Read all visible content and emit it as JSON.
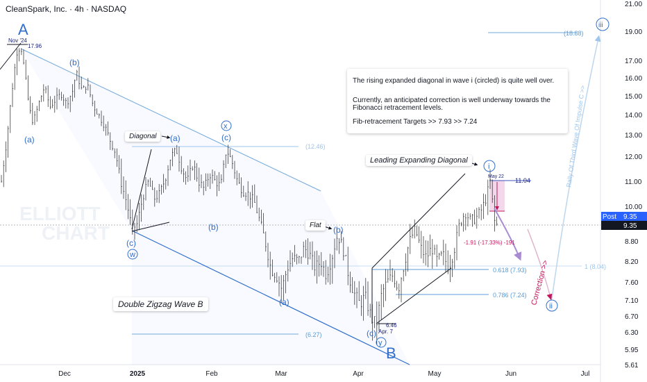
{
  "header": {
    "title": "CleanSpark, Inc. · 4h · NASDAQ"
  },
  "chart_data": {
    "type": "candlestick",
    "y_ticks": [
      "21.00",
      "19.00",
      "17.00",
      "16.00",
      "15.00",
      "14.00",
      "13.00",
      "12.00",
      "11.00",
      "10.00",
      "9.35",
      "8.80",
      "8.20",
      "7.60",
      "7.10",
      "6.70",
      "6.30",
      "5.95",
      "5.61"
    ],
    "y_tick_values": [
      21.0,
      19.0,
      17.0,
      16.0,
      15.0,
      14.0,
      13.0,
      12.0,
      11.0,
      10.0,
      9.35,
      8.8,
      8.2,
      7.6,
      7.1,
      6.7,
      6.3,
      5.95,
      5.61
    ],
    "x_ticks": [
      "Dec",
      "2025",
      "Feb",
      "Mar",
      "Apr",
      "May",
      "Jun",
      "Jul"
    ],
    "current_price": {
      "label": "Post",
      "value": "9.35"
    },
    "price_labels": {
      "high": "17.96",
      "high_date": "Nov '24",
      "low": "6.46",
      "low_date": "Apr. 7",
      "may_high": "11.04",
      "may_date": "May 22",
      "drop": "-1.91 (-17.33%) -191"
    },
    "levels": [
      {
        "label": "(18.88)",
        "value": 18.88
      },
      {
        "label": "(12.46)",
        "value": 12.46
      },
      {
        "label": "(6.27)",
        "value": 6.27
      },
      {
        "label": "1 (8.04)",
        "value": 8.04
      },
      {
        "label": "0.618 (7.93)",
        "value": 7.93
      },
      {
        "label": "0.786 (7.24)",
        "value": 7.24
      }
    ],
    "wave_labels": [
      "A",
      "(b)",
      "(a)",
      "(a)",
      "(c)",
      "w",
      "x",
      "(c)",
      "(b)",
      "(a)",
      "(b)",
      "(c)",
      "y",
      "B",
      "i",
      "ii",
      "iii"
    ],
    "annotations": {
      "diagonal": "Diagonal",
      "flat": "Flat",
      "leading": "Leading Expanding Diagonal",
      "double_zigzag": "Double Zigzag Wave B",
      "correction": "Correction >>",
      "rally": "Rally Of Third Wave Of Impulse C >>"
    },
    "info": {
      "line1": "The rising expanded diagonal in wave i (circled) is quite well over.",
      "line2": "Currently, an anticipated correction is well underway towards the",
      "line3": "Fibonacci retracement levels.",
      "line4": "Fib-retracement Targets >> 7.93   >>  7.24"
    },
    "watermark": [
      "ELLIOTT",
      "CHART"
    ],
    "candle_path": [
      [
        -6,
        12.0
      ],
      [
        2,
        11.0
      ],
      [
        10,
        12.8
      ],
      [
        18,
        15.5
      ],
      [
        24,
        17.5
      ],
      [
        30,
        17.96
      ],
      [
        36,
        16.2
      ],
      [
        42,
        14.3
      ],
      [
        48,
        13.6
      ],
      [
        56,
        14.6
      ],
      [
        64,
        15.5
      ],
      [
        72,
        14.4
      ],
      [
        80,
        14.8
      ],
      [
        88,
        15.1
      ],
      [
        96,
        14.6
      ],
      [
        104,
        15.2
      ],
      [
        110,
        16.3
      ],
      [
        118,
        15.3
      ],
      [
        126,
        15.6
      ],
      [
        134,
        14.5
      ],
      [
        142,
        14.0
      ],
      [
        150,
        13.5
      ],
      [
        158,
        12.8
      ],
      [
        166,
        12.2
      ],
      [
        174,
        11.0
      ],
      [
        182,
        10.2
      ],
      [
        190,
        9.2
      ],
      [
        198,
        9.4
      ],
      [
        206,
        10.4
      ],
      [
        214,
        11.0
      ],
      [
        222,
        10.3
      ],
      [
        230,
        10.5
      ],
      [
        238,
        11.1
      ],
      [
        246,
        12.0
      ],
      [
        254,
        12.3
      ],
      [
        262,
        11.5
      ],
      [
        270,
        11.0
      ],
      [
        278,
        11.7
      ],
      [
        286,
        11.0
      ],
      [
        294,
        10.7
      ],
      [
        302,
        11.3
      ],
      [
        310,
        11.0
      ],
      [
        318,
        10.8
      ],
      [
        326,
        12.3
      ],
      [
        334,
        11.8
      ],
      [
        342,
        11.0
      ],
      [
        350,
        10.6
      ],
      [
        358,
        10.5
      ],
      [
        366,
        10.2
      ],
      [
        374,
        9.5
      ],
      [
        382,
        8.8
      ],
      [
        390,
        8.0
      ],
      [
        398,
        7.8
      ],
      [
        406,
        7.4
      ],
      [
        414,
        8.0
      ],
      [
        422,
        8.3
      ],
      [
        430,
        8.2
      ],
      [
        438,
        8.6
      ],
      [
        446,
        8.4
      ],
      [
        454,
        8.0
      ],
      [
        462,
        8.2
      ],
      [
        470,
        7.8
      ],
      [
        478,
        8.3
      ],
      [
        486,
        9.0
      ],
      [
        494,
        8.6
      ],
      [
        502,
        7.8
      ],
      [
        510,
        7.3
      ],
      [
        518,
        7.0
      ],
      [
        526,
        7.2
      ],
      [
        534,
        6.7
      ],
      [
        542,
        6.46
      ],
      [
        550,
        7.3
      ],
      [
        558,
        7.6
      ],
      [
        566,
        7.8
      ],
      [
        574,
        7.4
      ],
      [
        582,
        8.1
      ],
      [
        590,
        8.8
      ],
      [
        598,
        9.2
      ],
      [
        606,
        8.6
      ],
      [
        614,
        8.3
      ],
      [
        622,
        8.6
      ],
      [
        630,
        8.2
      ],
      [
        638,
        8.4
      ],
      [
        646,
        8.0
      ],
      [
        654,
        8.5
      ],
      [
        662,
        9.4
      ],
      [
        670,
        9.8
      ],
      [
        678,
        9.5
      ],
      [
        686,
        9.6
      ],
      [
        694,
        9.9
      ],
      [
        700,
        10.3
      ],
      [
        706,
        11.0
      ],
      [
        712,
        9.5
      ],
      [
        716,
        9.35
      ]
    ]
  }
}
